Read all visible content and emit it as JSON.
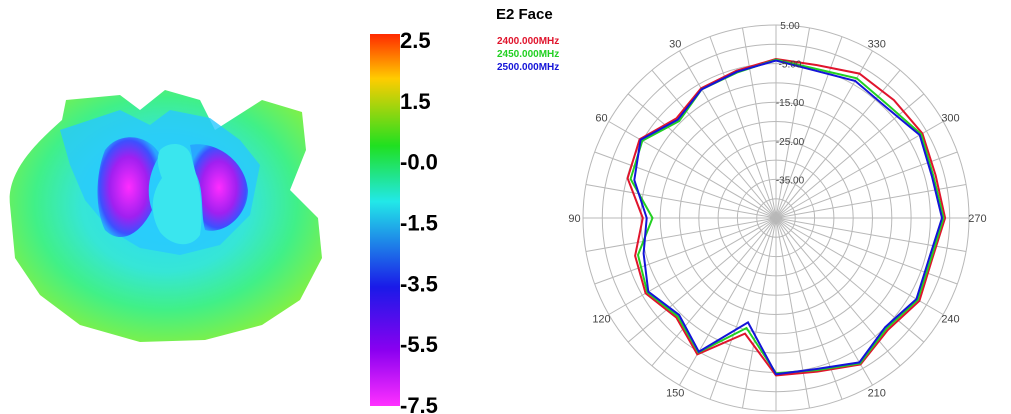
{
  "colors": {
    "series_2400": "#e0142c",
    "series_2450": "#22d022",
    "series_2500": "#1414d8",
    "grid": "#b8b8b8"
  },
  "chart_data": [
    {
      "type": "heatmap",
      "description_of_colormap": "",
      "colorbar": {
        "ticks": [
          "2.5",
          "1.5",
          "-0.0",
          "-1.5",
          "-3.5",
          "-5.5",
          "-7.5"
        ],
        "colors": [
          "#ff2a00",
          "#ffcc00",
          "#20e020",
          "#22e8e8",
          "#1a1ae8",
          "#8a00f0",
          "#ff30ff"
        ]
      }
    },
    {
      "type": "line",
      "subtype": "polar",
      "title": "E2 Face",
      "radial_ticks": [
        "5.00",
        "-5.00",
        "-15.00",
        "-25.00",
        "-35.00"
      ],
      "radial_range": [
        -45,
        5
      ],
      "angle_ticks": [
        "0",
        "30",
        "60",
        "90",
        "120",
        "150",
        "180",
        "210",
        "240",
        "270",
        "300",
        "330"
      ],
      "angle_labels_printed": [
        "30",
        "60",
        "90",
        "120",
        "150",
        "180",
        "210",
        "240",
        "270",
        "300",
        "330"
      ],
      "angle_direction": "counterclockwise",
      "legend_placement": "top-left",
      "series": [
        {
          "name": "2400.000MHz",
          "color": "#e0142c",
          "angles": [
            0,
            15,
            30,
            45,
            60,
            75,
            90,
            105,
            120,
            135,
            150,
            165,
            180,
            195,
            210,
            225,
            240,
            255,
            270,
            285,
            300,
            315,
            330,
            345
          ],
          "values": [
            -3.8,
            -5.5,
            -6.2,
            -8.5,
            -4.2,
            -5.2,
            -10.5,
            -7.2,
            -6.0,
            -8.5,
            -4.2,
            -14.0,
            -4.2,
            -3.8,
            -1.2,
            -4.0,
            -2.1,
            -3.2,
            -1.2,
            -2.2,
            -1.2,
            -1.8,
            -1.8,
            -4.0
          ]
        },
        {
          "name": "2450.000MHz",
          "color": "#22d022",
          "angles": [
            0,
            15,
            30,
            45,
            60,
            75,
            90,
            105,
            120,
            135,
            150,
            165,
            180,
            195,
            210,
            225,
            240,
            255,
            270,
            285,
            300,
            315,
            330,
            345
          ],
          "values": [
            -4.0,
            -6.0,
            -6.5,
            -9.5,
            -5.0,
            -6.0,
            -13.0,
            -8.0,
            -6.5,
            -9.0,
            -4.8,
            -15.5,
            -4.8,
            -4.2,
            -1.5,
            -4.5,
            -2.6,
            -3.5,
            -1.6,
            -2.8,
            -1.6,
            -3.8,
            -3.2,
            -5.0
          ]
        },
        {
          "name": "2500.000MHz",
          "color": "#1414d8",
          "angles": [
            0,
            15,
            30,
            45,
            60,
            75,
            90,
            105,
            120,
            135,
            150,
            165,
            180,
            195,
            210,
            225,
            240,
            255,
            270,
            285,
            300,
            315,
            330,
            345
          ],
          "values": [
            -4.2,
            -5.8,
            -6.5,
            -9.0,
            -4.5,
            -7.0,
            -11.5,
            -9.5,
            -6.8,
            -9.5,
            -5.0,
            -17.0,
            -4.5,
            -4.5,
            -1.8,
            -5.0,
            -3.0,
            -4.0,
            -2.0,
            -3.2,
            -2.0,
            -4.5,
            -4.0,
            -5.5
          ]
        }
      ]
    }
  ]
}
